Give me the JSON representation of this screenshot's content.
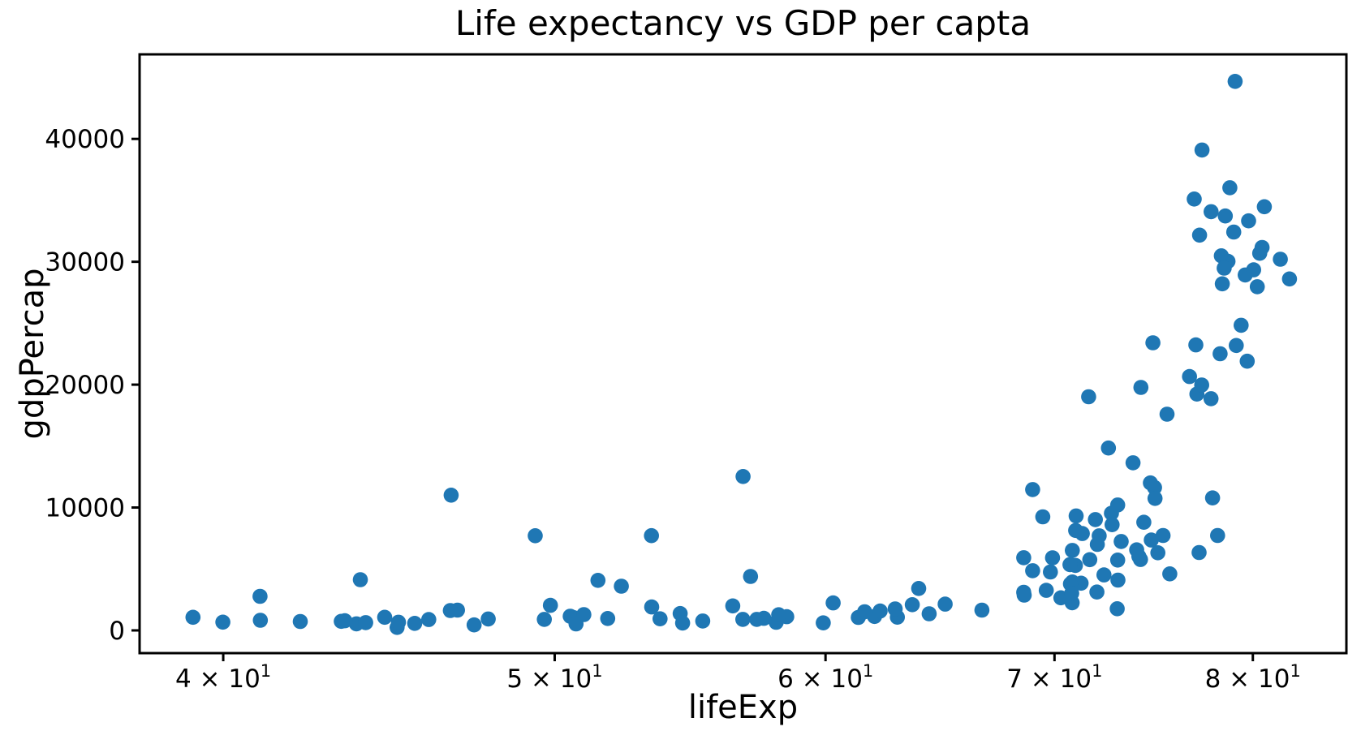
{
  "chart": {
    "title": "Life expectancy vs GDP per capta",
    "xlabel": "lifeExp",
    "ylabel": "gdpPercap"
  },
  "chart_data": {
    "type": "scatter",
    "title": "Life expectancy vs GDP per capta",
    "xlabel": "lifeExp",
    "ylabel": "gdpPercap",
    "marker_color": "#1f77b4",
    "axis_color": "#000000",
    "background_color": "#ffffff",
    "grid": false,
    "legend": false,
    "x_axis": {
      "scale": "log",
      "range": [
        37.81,
        85.2
      ],
      "tick_values": [
        40,
        50,
        60,
        70,
        80
      ],
      "tick_labels": [
        {
          "text": "4 × 10",
          "sup": "1"
        },
        {
          "text": "5 × 10",
          "sup": "1"
        },
        {
          "text": "6 × 10",
          "sup": "1"
        },
        {
          "text": "7 × 10",
          "sup": "1"
        },
        {
          "text": "8 × 10",
          "sup": "1"
        }
      ]
    },
    "y_axis": {
      "scale": "linear",
      "range": [
        -1850,
        46880
      ],
      "tick_values": [
        0,
        10000,
        20000,
        30000,
        40000
      ],
      "tick_labels": [
        "0",
        "10000",
        "20000",
        "30000",
        "40000"
      ]
    },
    "points": [
      [
        42.129,
        726.7
      ],
      [
        75.651,
        4604.2
      ],
      [
        70.994,
        5288.0
      ],
      [
        41.003,
        2773.3
      ],
      [
        74.34,
        8797.6
      ],
      [
        80.37,
        30687.8
      ],
      [
        78.98,
        32417.6
      ],
      [
        74.795,
        23403.6
      ],
      [
        62.013,
        1136.4
      ],
      [
        78.32,
        30485.9
      ],
      [
        54.406,
        1372.9
      ],
      [
        63.883,
        3413.3
      ],
      [
        74.09,
        6019.0
      ],
      [
        46.634,
        11003.6
      ],
      [
        71.006,
        8131.2
      ],
      [
        72.14,
        7696.8
      ],
      [
        50.65,
        1037.6
      ],
      [
        47.36,
        446.4
      ],
      [
        56.752,
        896.2
      ],
      [
        49.856,
        2042.1
      ],
      [
        79.77,
        33329.0
      ],
      [
        43.308,
        738.7
      ],
      [
        50.525,
        1156.2
      ],
      [
        77.86,
        10778.8
      ],
      [
        72.028,
        3119.3
      ],
      [
        71.682,
        5755.3
      ],
      [
        62.974,
        1075.8
      ],
      [
        44.966,
        241.2
      ],
      [
        52.295,
        3600.4
      ],
      [
        78.123,
        7723.4
      ],
      [
        46.832,
        1648.8
      ],
      [
        74.876,
        11628.4
      ],
      [
        77.158,
        6340.6
      ],
      [
        75.51,
        17596.2
      ],
      [
        77.18,
        32166.5
      ],
      [
        53.373,
        1908.3
      ],
      [
        70.847,
        3940.0
      ],
      [
        74.173,
        5773.0
      ],
      [
        69.806,
        4754.6
      ],
      [
        70.734,
        5351.6
      ],
      [
        49.348,
        7703.5
      ],
      [
        55.24,
        765.4
      ],
      [
        50.725,
        530.1
      ],
      [
        78.37,
        28204.6
      ],
      [
        79.59,
        28926.0
      ],
      [
        56.761,
        12521.7
      ],
      [
        58.041,
        660.6
      ],
      [
        78.67,
        30035.8
      ],
      [
        58.453,
        1112.0
      ],
      [
        78.256,
        22514.3
      ],
      [
        68.978,
        4858.3
      ],
      [
        53.676,
        942.7
      ],
      [
        45.504,
        575.7
      ],
      [
        58.137,
        1270.4
      ],
      [
        68.565,
        3099.7
      ],
      [
        81.495,
        30209.0
      ],
      [
        72.59,
        14843.9
      ],
      [
        80.5,
        31163.2
      ],
      [
        62.879,
        1746.8
      ],
      [
        68.588,
        2873.9
      ],
      [
        69.451,
        9240.8
      ],
      [
        57.046,
        4390.7
      ],
      [
        77.783,
        34077.0
      ],
      [
        79.696,
        21905.6
      ],
      [
        80.24,
        27968.1
      ],
      [
        72.047,
        6994.8
      ],
      [
        82.0,
        28604.6
      ],
      [
        71.263,
        3844.9
      ],
      [
        50.992,
        1287.5
      ],
      [
        66.662,
        1646.8
      ],
      [
        77.045,
        19234.0
      ],
      [
        76.904,
        35110.1
      ],
      [
        71.028,
        9313.9
      ],
      [
        44.593,
        1068.7
      ],
      [
        43.753,
        531.5
      ],
      [
        72.737,
        9534.7
      ],
      [
        57.286,
        894.6
      ],
      [
        45.009,
        665.4
      ],
      [
        73.044,
        10207.0
      ],
      [
        51.818,
        972.3
      ],
      [
        62.247,
        1579.0
      ],
      [
        71.954,
        9021.8
      ],
      [
        74.902,
        10742.4
      ],
      [
        65.033,
        2140.7
      ],
      [
        73.981,
        6557.2
      ],
      [
        69.615,
        3258.5
      ],
      [
        44.026,
        633.6
      ],
      [
        59.908,
        611.0
      ],
      [
        51.479,
        4072.3
      ],
      [
        61.34,
        1057.2
      ],
      [
        78.53,
        33724.8
      ],
      [
        79.11,
        23189.8
      ],
      [
        70.836,
        2253.0
      ],
      [
        54.496,
        601.1
      ],
      [
        46.608,
        1615.3
      ],
      [
        79.05,
        44684.0
      ],
      [
        74.193,
        19774.8
      ],
      [
        63.61,
        2092.7
      ],
      [
        74.712,
        7356.0
      ],
      [
        70.755,
        3783.7
      ],
      [
        69.906,
        5909.0
      ],
      [
        70.303,
        2650.9
      ],
      [
        74.67,
        12002.2
      ],
      [
        77.29,
        19970.9
      ],
      [
        77.778,
        18855.6
      ],
      [
        75.043,
        6316.2
      ],
      [
        71.322,
        7885.4
      ],
      [
        43.413,
        785.7
      ],
      [
        64.337,
        1353.1
      ],
      [
        71.626,
        19014.5
      ],
      [
        61.6,
        1519.6
      ],
      [
        73.213,
        7236.1
      ],
      [
        41.012,
        823.7
      ],
      [
        78.77,
        36023.1
      ],
      [
        73.8,
        13638.8
      ],
      [
        76.66,
        20660.0
      ],
      [
        45.936,
        882.1
      ],
      [
        53.365,
        7710.9
      ],
      [
        79.37,
        24835.5
      ],
      [
        70.815,
        3015.4
      ],
      [
        56.369,
        1993.4
      ],
      [
        43.869,
        4128.1
      ],
      [
        80.04,
        29341.6
      ],
      [
        80.62,
        34481.0
      ],
      [
        73.053,
        4090.9
      ],
      [
        76.99,
        23235.4
      ],
      [
        49.651,
        899.1
      ],
      [
        68.564,
        5913.2
      ],
      [
        57.561,
        982.3
      ],
      [
        68.976,
        11460.6
      ],
      [
        73.042,
        5722.9
      ],
      [
        70.845,
        6508.1
      ],
      [
        47.813,
        927.7
      ],
      [
        78.471,
        29479.0
      ],
      [
        77.31,
        39097.1
      ],
      [
        75.307,
        7727.0
      ],
      [
        72.766,
        8605.0
      ],
      [
        73.017,
        1764.5
      ],
      [
        72.37,
        4515.5
      ],
      [
        60.308,
        2234.8
      ],
      [
        39.193,
        1071.6
      ],
      [
        39.989,
        672.0
      ]
    ]
  }
}
